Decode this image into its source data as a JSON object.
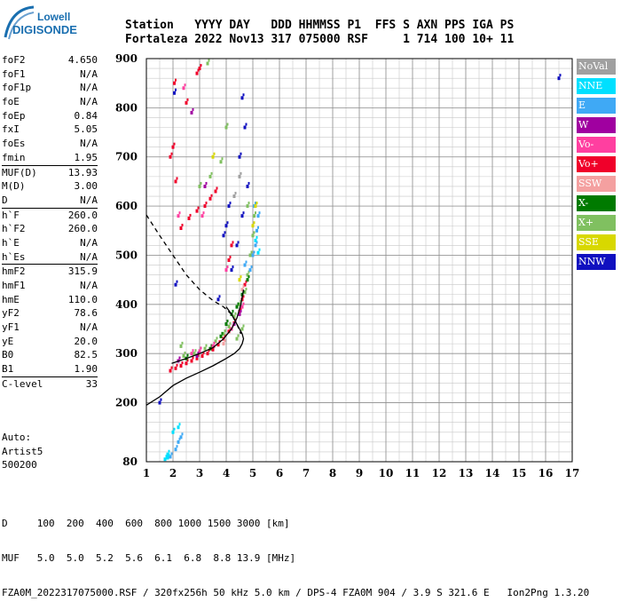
{
  "logo": {
    "line1": "Lowell",
    "line2": "DIGISONDE"
  },
  "header": {
    "line1": "Station   YYYY DAY   DDD HHMMSS P1  FFS S AXN PPS IGA PS",
    "line2": "Fortaleza 2022 Nov13 317 075000 RSF     1 714 100 10+ 11"
  },
  "params": [
    {
      "k": "foF2",
      "v": "4.650"
    },
    {
      "k": "foF1",
      "v": "N/A"
    },
    {
      "k": "foF1p",
      "v": "N/A"
    },
    {
      "k": "foE",
      "v": "N/A"
    },
    {
      "k": "foEp",
      "v": "0.84"
    },
    {
      "k": "fxI",
      "v": "5.05"
    },
    {
      "k": "foEs",
      "v": "N/A"
    },
    {
      "k": "fmin",
      "v": "1.95"
    },
    {
      "sep": true
    },
    {
      "k": "MUF(D)",
      "v": "13.93"
    },
    {
      "k": "M(D)",
      "v": "3.00"
    },
    {
      "k": "D",
      "v": "N/A"
    },
    {
      "sep": true
    },
    {
      "k": "h`F",
      "v": "260.0"
    },
    {
      "k": "h`F2",
      "v": "260.0"
    },
    {
      "k": "h`E",
      "v": "N/A"
    },
    {
      "k": "h`Es",
      "v": "N/A"
    },
    {
      "sep": true
    },
    {
      "k": "hmF2",
      "v": "315.9"
    },
    {
      "k": "hmF1",
      "v": "N/A"
    },
    {
      "k": "hmE",
      "v": "110.0"
    },
    {
      "k": "yF2",
      "v": "78.6"
    },
    {
      "k": "yF1",
      "v": "N/A"
    },
    {
      "k": "yE",
      "v": "20.0"
    },
    {
      "k": "B0",
      "v": "82.5"
    },
    {
      "k": "B1",
      "v": "1.90"
    },
    {
      "sep": true
    },
    {
      "k": "C-level",
      "v": "33"
    }
  ],
  "auto": [
    "Auto:",
    "Artist5",
    "500200"
  ],
  "legend": [
    {
      "label": "NoVal",
      "color": "#a0a0a0"
    },
    {
      "label": "NNE",
      "color": "#00e0ff"
    },
    {
      "label": "E",
      "color": "#3fa9f5"
    },
    {
      "label": "W",
      "color": "#a000a0"
    },
    {
      "label": "Vo-",
      "color": "#ff3fa0"
    },
    {
      "label": "Vo+",
      "color": "#f0002a"
    },
    {
      "label": "SSW",
      "color": "#f4a0a0"
    },
    {
      "label": "X-",
      "color": "#007a00"
    },
    {
      "label": "X+",
      "color": "#80c060"
    },
    {
      "label": "SSE",
      "color": "#d8d800"
    },
    {
      "label": "NNW",
      "color": "#1010c0"
    }
  ],
  "bottom": {
    "line1": "D     100  200  400  600  800 1000 1500 3000 [km]",
    "line2": "MUF   5.0  5.0  5.2  5.6  6.1  6.8  8.8 13.9 [MHz]",
    "line3": "FZA0M_2022317075000.RSF / 320fx256h 50 kHz 5.0 km / DPS-4 FZA0M 904 / 3.9 S 321.6 E   Ion2Png 1.3.20"
  },
  "chart_data": {
    "type": "scatter",
    "xlim": [
      1,
      17
    ],
    "ylim": [
      80,
      900
    ],
    "x_ticks": [
      1,
      2,
      3,
      4,
      5,
      6,
      7,
      8,
      9,
      10,
      11,
      12,
      13,
      14,
      15,
      16,
      17
    ],
    "y_ticks": [
      80,
      200,
      300,
      400,
      500,
      600,
      700,
      800,
      900
    ],
    "grid": true,
    "series": [
      {
        "name": "Vo+",
        "color": "#f0002a",
        "points": [
          [
            1.9,
            265
          ],
          [
            2.1,
            270
          ],
          [
            2.3,
            275
          ],
          [
            2.5,
            280
          ],
          [
            2.7,
            285
          ],
          [
            2.9,
            290
          ],
          [
            3.1,
            295
          ],
          [
            3.3,
            300
          ],
          [
            3.5,
            308
          ],
          [
            3.7,
            318
          ],
          [
            3.9,
            330
          ],
          [
            4.1,
            345
          ],
          [
            4.3,
            362
          ],
          [
            4.5,
            385
          ],
          [
            4.6,
            410
          ],
          [
            4.7,
            440
          ],
          [
            1.9,
            700
          ],
          [
            2.0,
            720
          ],
          [
            2.05,
            850
          ],
          [
            2.3,
            555
          ],
          [
            2.6,
            575
          ],
          [
            2.9,
            590
          ],
          [
            3.2,
            600
          ],
          [
            3.4,
            615
          ],
          [
            3.6,
            630
          ],
          [
            2.5,
            810
          ],
          [
            2.9,
            870
          ],
          [
            3.0,
            880
          ],
          [
            2.1,
            650
          ],
          [
            4.2,
            520
          ],
          [
            4.1,
            490
          ]
        ]
      },
      {
        "name": "X+",
        "color": "#80c060",
        "points": [
          [
            2.4,
            295
          ],
          [
            2.8,
            300
          ],
          [
            3.2,
            310
          ],
          [
            3.6,
            325
          ],
          [
            3.9,
            340
          ],
          [
            4.1,
            355
          ],
          [
            4.3,
            375
          ],
          [
            4.5,
            400
          ],
          [
            4.7,
            425
          ],
          [
            4.8,
            460
          ],
          [
            4.9,
            500
          ],
          [
            5.0,
            540
          ],
          [
            5.05,
            580
          ],
          [
            3.0,
            640
          ],
          [
            3.4,
            660
          ],
          [
            3.8,
            690
          ],
          [
            4.0,
            760
          ],
          [
            3.3,
            890
          ],
          [
            2.3,
            315
          ],
          [
            4.4,
            330
          ],
          [
            4.6,
            350
          ],
          [
            4.8,
            600
          ]
        ]
      },
      {
        "name": "X-",
        "color": "#007a00",
        "points": [
          [
            4.0,
            360
          ],
          [
            4.2,
            380
          ],
          [
            4.4,
            395
          ],
          [
            4.6,
            420
          ],
          [
            4.8,
            450
          ],
          [
            3.4,
            310
          ],
          [
            3.8,
            335
          ],
          [
            2.5,
            290
          ]
        ]
      },
      {
        "name": "E",
        "color": "#3fa9f5",
        "points": [
          [
            4.9,
            470
          ],
          [
            5.0,
            500
          ],
          [
            5.1,
            520
          ],
          [
            5.15,
            550
          ],
          [
            5.2,
            580
          ],
          [
            4.7,
            480
          ],
          [
            2.2,
            120
          ],
          [
            2.3,
            130
          ],
          [
            1.9,
            90
          ],
          [
            5.05,
            600
          ],
          [
            2.1,
            105
          ]
        ]
      },
      {
        "name": "NNE",
        "color": "#00e0ff",
        "points": [
          [
            1.7,
            85
          ],
          [
            1.8,
            88
          ],
          [
            2.0,
            140
          ],
          [
            2.2,
            150
          ],
          [
            5.1,
            530
          ],
          [
            5.2,
            505
          ],
          [
            1.8,
            95
          ]
        ]
      },
      {
        "name": "NNW",
        "color": "#1010c0",
        "points": [
          [
            4.2,
            470
          ],
          [
            4.4,
            520
          ],
          [
            4.6,
            580
          ],
          [
            4.8,
            640
          ],
          [
            4.1,
            600
          ],
          [
            4.0,
            560
          ],
          [
            3.9,
            540
          ],
          [
            1.5,
            200
          ],
          [
            2.1,
            440
          ],
          [
            16.5,
            860
          ],
          [
            4.5,
            700
          ],
          [
            4.7,
            760
          ],
          [
            4.6,
            820
          ],
          [
            3.7,
            410
          ],
          [
            2.05,
            830
          ]
        ]
      },
      {
        "name": "Vo-",
        "color": "#ff3fa0",
        "points": [
          [
            2.7,
            300
          ],
          [
            3.0,
            305
          ],
          [
            3.5,
            315
          ],
          [
            4.2,
            350
          ],
          [
            4.6,
            395
          ],
          [
            2.2,
            580
          ],
          [
            3.1,
            580
          ],
          [
            4.0,
            470
          ],
          [
            2.4,
            840
          ]
        ]
      },
      {
        "name": "W",
        "color": "#a000a0",
        "points": [
          [
            4.3,
            360
          ],
          [
            4.5,
            380
          ],
          [
            2.9,
            295
          ],
          [
            2.2,
            285
          ],
          [
            3.2,
            640
          ],
          [
            2.7,
            790
          ]
        ]
      },
      {
        "name": "SSE",
        "color": "#d8d800",
        "points": [
          [
            5.0,
            560
          ],
          [
            5.1,
            600
          ],
          [
            3.5,
            700
          ],
          [
            4.5,
            450
          ]
        ]
      },
      {
        "name": "SSW",
        "color": "#f4a0a0",
        "points": [
          [
            3.9,
            320
          ],
          [
            4.6,
            430
          ]
        ]
      },
      {
        "name": "NoVal",
        "color": "#a0a0a0",
        "points": [
          [
            4.3,
            620
          ],
          [
            4.5,
            660
          ]
        ]
      }
    ],
    "lines": [
      {
        "style": "solid",
        "points": [
          [
            1.0,
            195
          ],
          [
            1.5,
            212
          ],
          [
            2.0,
            235
          ],
          [
            2.5,
            250
          ],
          [
            3.0,
            262
          ],
          [
            3.5,
            275
          ],
          [
            4.0,
            290
          ],
          [
            4.3,
            300
          ],
          [
            4.5,
            310
          ],
          [
            4.6,
            320
          ],
          [
            4.65,
            330
          ],
          [
            4.6,
            340
          ],
          [
            4.5,
            350
          ],
          [
            4.4,
            360
          ],
          [
            4.2,
            380
          ],
          [
            4.0,
            395
          ]
        ]
      },
      {
        "style": "solid",
        "points": [
          [
            1.95,
            280
          ],
          [
            2.5,
            290
          ],
          [
            3.0,
            300
          ],
          [
            3.5,
            312
          ],
          [
            3.9,
            330
          ],
          [
            4.2,
            350
          ],
          [
            4.4,
            372
          ],
          [
            4.55,
            400
          ],
          [
            4.65,
            430
          ]
        ]
      },
      {
        "style": "dashed",
        "points": [
          [
            1.0,
            582
          ],
          [
            1.5,
            540
          ],
          [
            2.0,
            500
          ],
          [
            2.5,
            460
          ],
          [
            3.0,
            430
          ],
          [
            3.5,
            408
          ],
          [
            3.9,
            395
          ],
          [
            4.2,
            380
          ],
          [
            4.4,
            360
          ],
          [
            4.55,
            340
          ]
        ]
      }
    ]
  }
}
